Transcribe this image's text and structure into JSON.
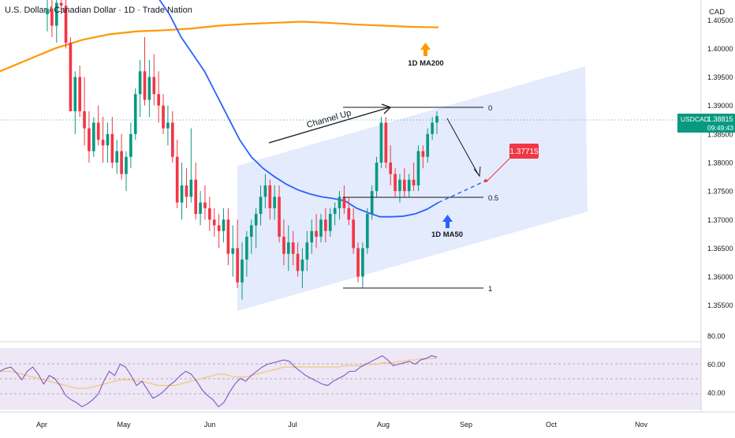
{
  "header": {
    "symbol_title": "U.S. Dollar / Canadian Dollar · 1D · Trade Nation",
    "currency": "CAD"
  },
  "price_axis": {
    "ticks": [
      "1.40500",
      "1.40000",
      "1.39500",
      "1.39000",
      "1.38500",
      "1.38000",
      "1.37500",
      "1.37000",
      "1.36500",
      "1.36000",
      "1.35500"
    ],
    "tick_values": [
      1.405,
      1.4,
      1.395,
      1.39,
      1.385,
      1.38,
      1.375,
      1.37,
      1.365,
      1.36,
      1.355
    ]
  },
  "time_axis": {
    "labels": [
      "Apr",
      "May",
      "Jun",
      "Jul",
      "Aug",
      "Sep",
      "Oct",
      "Nov"
    ]
  },
  "last_price": {
    "symbol": "USDCAD",
    "price": "1.38815",
    "countdown": "09:49:43",
    "color": "#089981"
  },
  "target": {
    "label": "1.37715",
    "value": 1.37715,
    "color": "#f23645"
  },
  "annotations": {
    "channel_label": "Channel Up",
    "ma200_label": "1D MA200",
    "ma50_label": "1D MA50",
    "fib_0": "0",
    "fib_05": "0.5",
    "fib_1": "1"
  },
  "rsi": {
    "ticks": [
      "80.00",
      "60.00",
      "40.00"
    ],
    "tick_values": [
      80,
      60,
      40
    ]
  },
  "colors": {
    "up": "#089981",
    "down": "#f23645",
    "ma200": "#ff9800",
    "ma50": "#2962ff",
    "channel_fill": "#e3eafc",
    "rsi_band": "#ede7f6",
    "rsi_line": "#7e57c2",
    "rsi_ma": "#f7c16b"
  },
  "chart_data": {
    "type": "candlestick",
    "title": "U.S. Dollar / Canadian Dollar · 1D · Trade Nation",
    "ylim": [
      1.3515,
      1.4085
    ],
    "x_categories": [
      "Apr",
      "May",
      "Jun",
      "Jul",
      "Aug",
      "Sep",
      "Oct",
      "Nov"
    ],
    "candles": [
      [
        1.406,
        1.409,
        1.403,
        1.407
      ],
      [
        1.407,
        1.41,
        1.402,
        1.404
      ],
      [
        1.404,
        1.41,
        1.401,
        1.408
      ],
      [
        1.408,
        1.409,
        1.406,
        1.4075
      ],
      [
        1.4075,
        1.409,
        1.4,
        1.401
      ],
      [
        1.401,
        1.402,
        1.389,
        1.389
      ],
      [
        1.389,
        1.396,
        1.385,
        1.395
      ],
      [
        1.395,
        1.397,
        1.388,
        1.389
      ],
      [
        1.389,
        1.395,
        1.383,
        1.386
      ],
      [
        1.386,
        1.389,
        1.38,
        1.382
      ],
      [
        1.382,
        1.388,
        1.381,
        1.387
      ],
      [
        1.387,
        1.39,
        1.383,
        1.384
      ],
      [
        1.384,
        1.388,
        1.38,
        1.383
      ],
      [
        1.383,
        1.387,
        1.38,
        1.385
      ],
      [
        1.385,
        1.388,
        1.379,
        1.38
      ],
      [
        1.38,
        1.384,
        1.378,
        1.382
      ],
      [
        1.382,
        1.385,
        1.377,
        1.378
      ],
      [
        1.378,
        1.382,
        1.375,
        1.381
      ],
      [
        1.381,
        1.387,
        1.379,
        1.385
      ],
      [
        1.385,
        1.393,
        1.384,
        1.392
      ],
      [
        1.392,
        1.398,
        1.388,
        1.396
      ],
      [
        1.396,
        1.402,
        1.39,
        1.391
      ],
      [
        1.391,
        1.398,
        1.388,
        1.395
      ],
      [
        1.395,
        1.399,
        1.39,
        1.392
      ],
      [
        1.392,
        1.396,
        1.387,
        1.39
      ],
      [
        1.39,
        1.392,
        1.385,
        1.386
      ],
      [
        1.386,
        1.39,
        1.383,
        1.387
      ],
      [
        1.387,
        1.389,
        1.38,
        1.381
      ],
      [
        1.381,
        1.384,
        1.372,
        1.373
      ],
      [
        1.373,
        1.38,
        1.37,
        1.376
      ],
      [
        1.376,
        1.379,
        1.372,
        1.374
      ],
      [
        1.374,
        1.386,
        1.373,
        1.377
      ],
      [
        1.377,
        1.38,
        1.37,
        1.371
      ],
      [
        1.371,
        1.375,
        1.369,
        1.373
      ],
      [
        1.373,
        1.376,
        1.37,
        1.372
      ],
      [
        1.372,
        1.374,
        1.368,
        1.37
      ],
      [
        1.37,
        1.372,
        1.367,
        1.369
      ],
      [
        1.369,
        1.371,
        1.365,
        1.368
      ],
      [
        1.368,
        1.372,
        1.366,
        1.37
      ],
      [
        1.37,
        1.372,
        1.362,
        1.364
      ],
      [
        1.364,
        1.369,
        1.36,
        1.365
      ],
      [
        1.365,
        1.37,
        1.358,
        1.359
      ],
      [
        1.359,
        1.366,
        1.356,
        1.363
      ],
      [
        1.363,
        1.368,
        1.36,
        1.367
      ],
      [
        1.367,
        1.37,
        1.364,
        1.369
      ],
      [
        1.369,
        1.372,
        1.365,
        1.371
      ],
      [
        1.371,
        1.376,
        1.369,
        1.374
      ],
      [
        1.374,
        1.378,
        1.372,
        1.376
      ],
      [
        1.376,
        1.377,
        1.37,
        1.372
      ],
      [
        1.372,
        1.376,
        1.37,
        1.374
      ],
      [
        1.374,
        1.376,
        1.366,
        1.367
      ],
      [
        1.367,
        1.37,
        1.362,
        1.364
      ],
      [
        1.364,
        1.369,
        1.361,
        1.366
      ],
      [
        1.366,
        1.368,
        1.362,
        1.364
      ],
      [
        1.364,
        1.366,
        1.36,
        1.361
      ],
      [
        1.361,
        1.365,
        1.358,
        1.363
      ],
      [
        1.363,
        1.368,
        1.361,
        1.366
      ],
      [
        1.366,
        1.37,
        1.364,
        1.368
      ],
      [
        1.368,
        1.371,
        1.365,
        1.367
      ],
      [
        1.367,
        1.371,
        1.366,
        1.37
      ],
      [
        1.37,
        1.372,
        1.366,
        1.368
      ],
      [
        1.368,
        1.372,
        1.367,
        1.371
      ],
      [
        1.371,
        1.373,
        1.369,
        1.372
      ],
      [
        1.372,
        1.375,
        1.37,
        1.374
      ],
      [
        1.374,
        1.376,
        1.371,
        1.372
      ],
      [
        1.372,
        1.374,
        1.369,
        1.37
      ],
      [
        1.37,
        1.372,
        1.364,
        1.365
      ],
      [
        1.365,
        1.366,
        1.359,
        1.36
      ],
      [
        1.36,
        1.366,
        1.358,
        1.365
      ],
      [
        1.365,
        1.372,
        1.364,
        1.371
      ],
      [
        1.371,
        1.376,
        1.37,
        1.375
      ],
      [
        1.375,
        1.381,
        1.374,
        1.38
      ],
      [
        1.38,
        1.388,
        1.379,
        1.387
      ],
      [
        1.387,
        1.388,
        1.379,
        1.38
      ],
      [
        1.38,
        1.383,
        1.376,
        1.378
      ],
      [
        1.378,
        1.379,
        1.374,
        1.375
      ],
      [
        1.375,
        1.378,
        1.373,
        1.377
      ],
      [
        1.377,
        1.379,
        1.374,
        1.375
      ],
      [
        1.375,
        1.378,
        1.374,
        1.377
      ],
      [
        1.377,
        1.38,
        1.375,
        1.376
      ],
      [
        1.376,
        1.383,
        1.375,
        1.382
      ],
      [
        1.382,
        1.383,
        1.379,
        1.381
      ],
      [
        1.381,
        1.386,
        1.38,
        1.385
      ],
      [
        1.385,
        1.388,
        1.384,
        1.387
      ],
      [
        1.387,
        1.389,
        1.385,
        1.38815
      ]
    ],
    "ma200": [
      1.396,
      1.398,
      1.4,
      1.4015,
      1.4025,
      1.403,
      1.4032,
      1.4035,
      1.404,
      1.4043,
      1.4045,
      1.4047,
      1.4045,
      1.4042,
      1.404,
      1.4038,
      1.4037
    ],
    "ma50": [
      1.409,
      1.406,
      1.402,
      1.399,
      1.396,
      1.392,
      1.388,
      1.384,
      1.381,
      1.379,
      1.3775,
      1.3762,
      1.3752,
      1.3745,
      1.374,
      1.3737,
      1.3733,
      1.372,
      1.3712,
      1.3705,
      1.3705,
      1.3706,
      1.371,
      1.3718,
      1.373
    ],
    "rsi_values": [
      55,
      57,
      58,
      54,
      49,
      55,
      58,
      53,
      46,
      52,
      50,
      45,
      38,
      35,
      33,
      30,
      32,
      35,
      39,
      48,
      55,
      52,
      60,
      58,
      52,
      45,
      48,
      42,
      36,
      38,
      41,
      45,
      48,
      52,
      55,
      53,
      48,
      42,
      38,
      35,
      30,
      33,
      40,
      46,
      50,
      48,
      52,
      55,
      58,
      60,
      61,
      62,
      63,
      62,
      58,
      55,
      52,
      50,
      48,
      46,
      45,
      48,
      50,
      52,
      55,
      55,
      58,
      60,
      62,
      64,
      66,
      63,
      59,
      60,
      61,
      62,
      60,
      63,
      64,
      66,
      65
    ],
    "rsi_ma": [
      55,
      55,
      55,
      54,
      53,
      52,
      51,
      50,
      49,
      48,
      47,
      46,
      45,
      44,
      43,
      43,
      43,
      44,
      45,
      46,
      47,
      48,
      49,
      49,
      49,
      48,
      48,
      47,
      46,
      45,
      45,
      45,
      45,
      46,
      47,
      48,
      49,
      50,
      51,
      52,
      53,
      53,
      52,
      51,
      51,
      51,
      52,
      53,
      54,
      55,
      56,
      57,
      58,
      58,
      58,
      58,
      58,
      58,
      58,
      58,
      58,
      58,
      58,
      59,
      59,
      59,
      59,
      60,
      60,
      60,
      61,
      61,
      61,
      62,
      62,
      63,
      63,
      64,
      64,
      64,
      64
    ]
  }
}
